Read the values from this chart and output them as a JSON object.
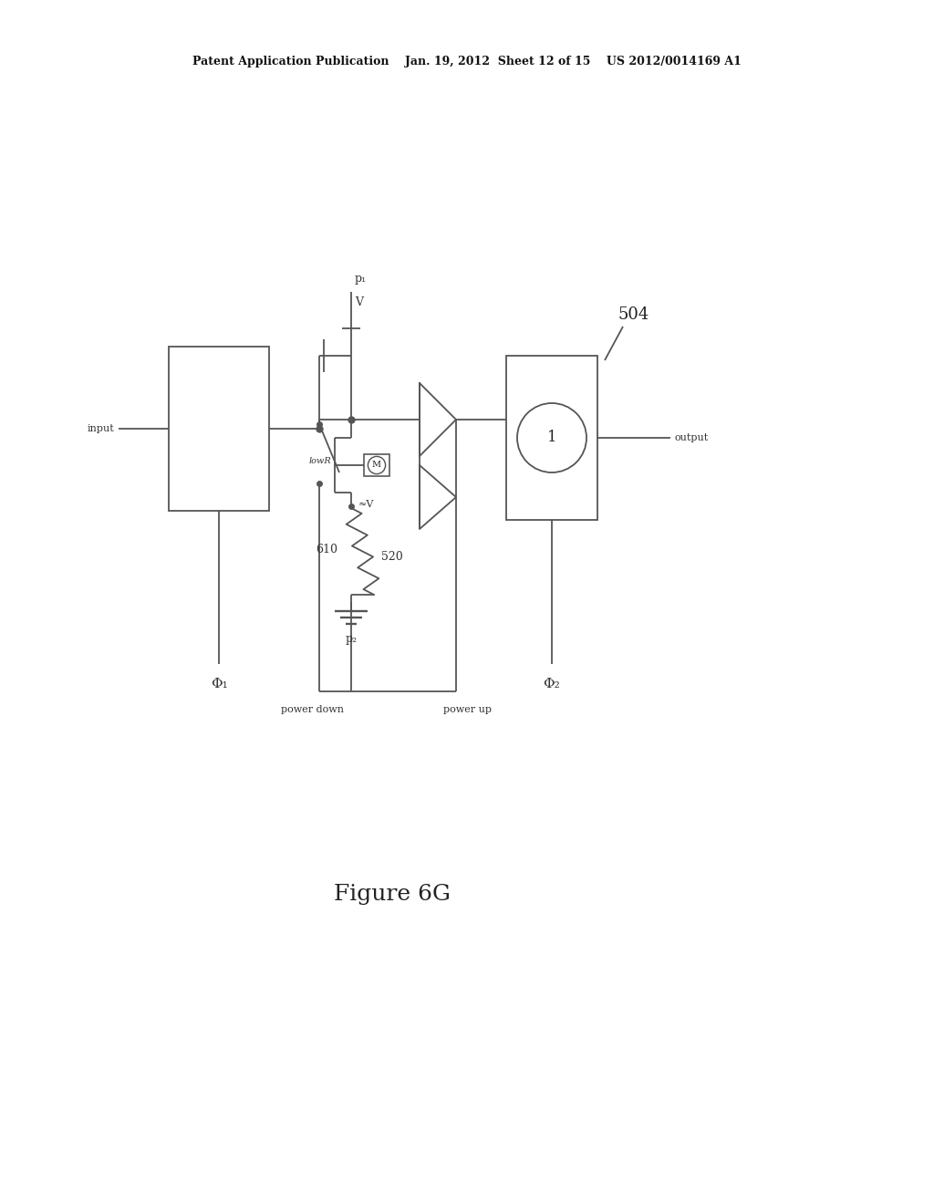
{
  "bg_color": "#ffffff",
  "header_text": "Patent Application Publication    Jan. 19, 2012  Sheet 12 of 15    US 2012/0014169 A1",
  "figure_label": "Figure 6G",
  "line_color": "#555555",
  "lw": 1.3,
  "input_label": "input",
  "output_label": "output",
  "phi1_label": "Φ₁",
  "phi2_label": "Φ₂",
  "p1_label": "p₁",
  "p2_label": "p₂",
  "V_label": "V",
  "approxV_label": "≈V",
  "lowR_label": "lowR",
  "label_504": "504",
  "label_610": "610",
  "label_520": "520",
  "power_down_label": "power down",
  "power_up_label": "power up"
}
